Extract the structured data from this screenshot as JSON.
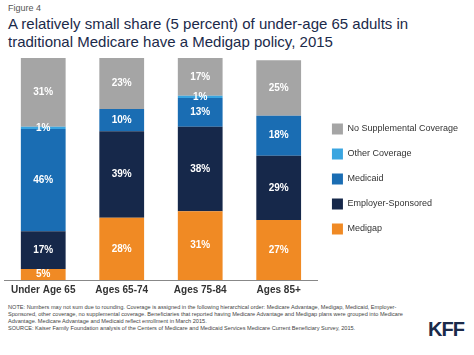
{
  "chart_data": {
    "type": "bar",
    "figure_label": "Figure 4",
    "title": "A relatively small share (5 percent) of under-age 65 adults in traditional Medicare have a Medigap policy, 2015",
    "categories": [
      "Under Age 65",
      "Ages 65-74",
      "Ages 75-84",
      "Ages 85+"
    ],
    "series": [
      {
        "name": "Medigap",
        "color": "#f08a24",
        "values": [
          5,
          28,
          31,
          27
        ],
        "value_labels": [
          "5%",
          "28%",
          "31%",
          "27%"
        ]
      },
      {
        "name": "Employer-Sponsored",
        "color": "#16284a",
        "values": [
          17,
          39,
          38,
          29
        ],
        "value_labels": [
          "17%",
          "39%",
          "38%",
          "29%"
        ]
      },
      {
        "name": "Medicaid",
        "color": "#1a6db3",
        "values": [
          46,
          10,
          13,
          18
        ],
        "value_labels": [
          "46%",
          "10%",
          "13%",
          "18%"
        ]
      },
      {
        "name": "Other Coverage",
        "color": "#3aa5e0",
        "values": [
          1,
          null,
          1,
          null
        ],
        "value_labels": [
          "1%",
          null,
          "1%",
          null
        ]
      },
      {
        "name": "No Supplemental Coverage",
        "color": "#a5a5a5",
        "values": [
          31,
          23,
          17,
          25
        ],
        "value_labels": [
          "31%",
          "23%",
          "17%",
          "25%"
        ]
      }
    ],
    "ylim": [
      0,
      100
    ],
    "stacked": true,
    "data_labels": true,
    "tick_labels": "x",
    "grid": false,
    "legend": "right",
    "note": "NOTE: Numbers may not sum due to rounding. Coverage is assigned in the following hierarchical order: Medicare Advantage, Medigap, Medicaid, Employer-Sponsored, other coverage, no supplemental coverage. Beneficiaries that reported having Medicare Advantage and Medigap plans were grouped into Medicare Advantage. Medicare Advantage and Medicaid reflect enrollment in March 2015.",
    "source": "SOURCE: Kaiser Family Foundation analysis of the Centers of Medicare and Medicaid Services Medicare Current Beneficiary Survey, 2015.",
    "logo": "KFF"
  }
}
